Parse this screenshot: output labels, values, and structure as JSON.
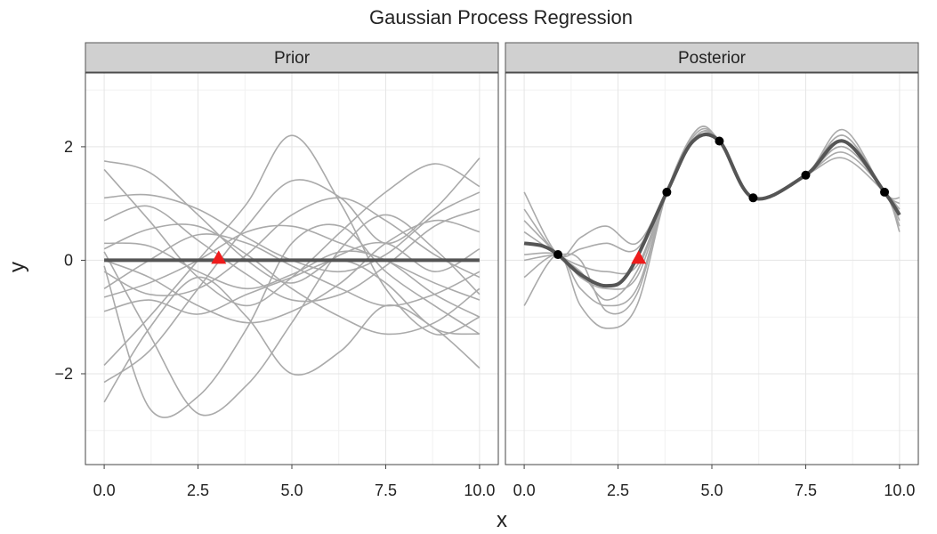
{
  "chart_data": {
    "type": "line",
    "title": "Gaussian Process Regression",
    "xlabel": "x",
    "ylabel": "y",
    "xlim": [
      -0.5,
      10.5
    ],
    "ylim": [
      -3.6,
      3.3
    ],
    "x_ticks": [
      0,
      2.5,
      5,
      7.5,
      10
    ],
    "x_tick_labels": [
      "0.0",
      "2.5",
      "5.0",
      "7.5",
      "10.0"
    ],
    "y_ticks": [
      -2,
      0,
      2
    ],
    "y_tick_labels": [
      "−2",
      "0",
      "2"
    ],
    "grid": true,
    "colors": {
      "sample": "#aaaaaa",
      "mean": "#555555",
      "observed": "#000000",
      "query": "#ee1c1c",
      "strip": "#d0d0d0",
      "grid": "#e5e5e5"
    },
    "panels": [
      {
        "label": "Prior",
        "samples": [
          [
            [
              0,
              1.75
            ],
            [
              1.2,
              1.55
            ],
            [
              2.5,
              0.8
            ],
            [
              3.8,
              0.0
            ],
            [
              5,
              -0.4
            ],
            [
              6.3,
              0.1
            ],
            [
              7.5,
              0.3
            ],
            [
              8.8,
              -0.2
            ],
            [
              10,
              0.2
            ]
          ],
          [
            [
              0,
              1.6
            ],
            [
              1.2,
              0.7
            ],
            [
              2.5,
              -0.3
            ],
            [
              3.8,
              -0.8
            ],
            [
              5,
              -0.3
            ],
            [
              6.3,
              0.5
            ],
            [
              7.5,
              1.2
            ],
            [
              8.8,
              1.7
            ],
            [
              10,
              1.3
            ]
          ],
          [
            [
              0,
              1.1
            ],
            [
              1.2,
              1.15
            ],
            [
              2.5,
              0.9
            ],
            [
              3.8,
              0.4
            ],
            [
              5,
              0.0
            ],
            [
              6.3,
              -0.2
            ],
            [
              7.5,
              0.1
            ],
            [
              8.8,
              0.8
            ],
            [
              10,
              1.2
            ]
          ],
          [
            [
              0,
              0.7
            ],
            [
              1.2,
              0.95
            ],
            [
              2.5,
              0.35
            ],
            [
              3.8,
              -0.25
            ],
            [
              5,
              -0.7
            ],
            [
              6.3,
              -0.6
            ],
            [
              7.5,
              -0.1
            ],
            [
              8.8,
              0.6
            ],
            [
              10,
              0.9
            ]
          ],
          [
            [
              0,
              0.3
            ],
            [
              1.2,
              0.25
            ],
            [
              2.5,
              -0.2
            ],
            [
              3.8,
              -0.5
            ],
            [
              5,
              -0.25
            ],
            [
              6.3,
              0.15
            ],
            [
              7.5,
              0.0
            ],
            [
              8.8,
              -0.6
            ],
            [
              10,
              -1.0
            ]
          ],
          [
            [
              0,
              0.2
            ],
            [
              1.2,
              0.55
            ],
            [
              2.5,
              0.6
            ],
            [
              3.8,
              0.1
            ],
            [
              5,
              -0.5
            ],
            [
              6.3,
              -1.0
            ],
            [
              7.5,
              -1.3
            ],
            [
              8.8,
              -1.1
            ],
            [
              10,
              -0.5
            ]
          ],
          [
            [
              0,
              0.0
            ],
            [
              1.2,
              -0.3
            ],
            [
              2.5,
              -0.8
            ],
            [
              3.8,
              -1.1
            ],
            [
              5,
              -0.9
            ],
            [
              6.3,
              -0.4
            ],
            [
              7.5,
              0.3
            ],
            [
              8.8,
              0.7
            ],
            [
              10,
              0.5
            ]
          ],
          [
            [
              0,
              -0.2
            ],
            [
              1.2,
              -0.6
            ],
            [
              2.5,
              -0.5
            ],
            [
              3.8,
              0.1
            ],
            [
              5,
              0.8
            ],
            [
              6.3,
              1.1
            ],
            [
              7.5,
              0.7
            ],
            [
              8.8,
              0.1
            ],
            [
              10,
              -0.3
            ]
          ],
          [
            [
              0,
              -0.5
            ],
            [
              1.2,
              0.0
            ],
            [
              2.5,
              0.45
            ],
            [
              3.8,
              0.3
            ],
            [
              5,
              -0.1
            ],
            [
              6.3,
              -0.5
            ],
            [
              7.5,
              -0.8
            ],
            [
              8.8,
              -0.6
            ],
            [
              10,
              -0.2
            ]
          ],
          [
            [
              0,
              -0.65
            ],
            [
              1.2,
              -0.4
            ],
            [
              2.5,
              0.0
            ],
            [
              3.8,
              0.5
            ],
            [
              5,
              0.6
            ],
            [
              6.3,
              0.3
            ],
            [
              7.5,
              0.0
            ],
            [
              8.8,
              -0.4
            ],
            [
              10,
              -0.7
            ]
          ],
          [
            [
              0,
              -0.9
            ],
            [
              1.2,
              -0.7
            ],
            [
              2.5,
              -0.95
            ],
            [
              3.8,
              -0.6
            ],
            [
              5,
              -0.3
            ],
            [
              6.3,
              0.0
            ],
            [
              7.5,
              -0.4
            ],
            [
              8.8,
              -1.2
            ],
            [
              10,
              -1.3
            ]
          ],
          [
            [
              0,
              -1.85
            ],
            [
              1.2,
              -1.0
            ],
            [
              2.5,
              0.0
            ],
            [
              3.8,
              1.0
            ],
            [
              5,
              2.2
            ],
            [
              6.3,
              1.0
            ],
            [
              7.5,
              -0.5
            ],
            [
              8.8,
              -1.3
            ],
            [
              10,
              -1.0
            ]
          ],
          [
            [
              0,
              -2.15
            ],
            [
              1.2,
              -1.6
            ],
            [
              2.5,
              -0.5
            ],
            [
              3.8,
              0.6
            ],
            [
              5,
              1.4
            ],
            [
              6.3,
              1.1
            ],
            [
              7.5,
              0.3
            ],
            [
              8.8,
              0.9
            ],
            [
              10,
              1.8
            ]
          ],
          [
            [
              0,
              -2.5
            ],
            [
              1.2,
              -1.2
            ],
            [
              2.5,
              -0.3
            ],
            [
              3.8,
              -1.0
            ],
            [
              5,
              -2.0
            ],
            [
              6.3,
              -1.6
            ],
            [
              7.5,
              -0.8
            ],
            [
              8.8,
              -1.2
            ],
            [
              10,
              -1.9
            ]
          ],
          [
            [
              0,
              0.15
            ],
            [
              1.2,
              -1.3
            ],
            [
              2.5,
              -2.7
            ],
            [
              3.8,
              -2.2
            ],
            [
              5,
              -1.1
            ],
            [
              6.3,
              0.2
            ],
            [
              7.5,
              0.8
            ],
            [
              8.8,
              0.2
            ],
            [
              10,
              -0.6
            ]
          ],
          [
            [
              0,
              -0.1
            ],
            [
              1.2,
              -2.6
            ],
            [
              2.5,
              -2.4
            ],
            [
              3.8,
              -1.2
            ],
            [
              5,
              0.3
            ],
            [
              6.3,
              0.6
            ],
            [
              7.5,
              -0.2
            ],
            [
              8.8,
              -0.8
            ],
            [
              10,
              -1.3
            ]
          ]
        ],
        "mean": [
          [
            0,
            0
          ],
          [
            10,
            0
          ]
        ],
        "query_point": [
          3.05,
          0.02
        ],
        "observed": []
      },
      {
        "label": "Posterior",
        "samples": [
          [
            [
              0,
              1.2
            ],
            [
              0.9,
              0.1
            ],
            [
              1.5,
              0.4
            ],
            [
              2.2,
              0.6
            ],
            [
              3.0,
              0.3
            ],
            [
              3.8,
              1.2
            ],
            [
              4.5,
              2.1
            ],
            [
              5.2,
              2.1
            ],
            [
              6.1,
              1.1
            ],
            [
              7.5,
              1.5
            ],
            [
              8.5,
              2.3
            ],
            [
              9.6,
              1.2
            ],
            [
              10,
              1.1
            ]
          ],
          [
            [
              0,
              0.9
            ],
            [
              0.9,
              0.1
            ],
            [
              1.5,
              0.2
            ],
            [
              2.2,
              0.3
            ],
            [
              3.0,
              0.2
            ],
            [
              3.8,
              1.2
            ],
            [
              4.6,
              2.2
            ],
            [
              5.2,
              2.1
            ],
            [
              6.1,
              1.1
            ],
            [
              7.5,
              1.5
            ],
            [
              8.5,
              2.2
            ],
            [
              9.6,
              1.2
            ],
            [
              10,
              0.9
            ]
          ],
          [
            [
              0,
              0.5
            ],
            [
              0.9,
              0.1
            ],
            [
              1.5,
              -0.1
            ],
            [
              2.2,
              -0.2
            ],
            [
              3.0,
              -0.1
            ],
            [
              3.8,
              1.2
            ],
            [
              4.6,
              2.2
            ],
            [
              5.2,
              2.1
            ],
            [
              6.1,
              1.1
            ],
            [
              7.5,
              1.5
            ],
            [
              8.5,
              2.1
            ],
            [
              9.6,
              1.2
            ],
            [
              10,
              0.8
            ]
          ],
          [
            [
              0,
              0.1
            ],
            [
              0.9,
              0.1
            ],
            [
              1.5,
              -0.3
            ],
            [
              2.2,
              -0.5
            ],
            [
              3.0,
              -0.3
            ],
            [
              3.8,
              1.2
            ],
            [
              4.6,
              2.25
            ],
            [
              5.2,
              2.1
            ],
            [
              6.1,
              1.1
            ],
            [
              7.5,
              1.5
            ],
            [
              8.5,
              2.0
            ],
            [
              9.6,
              1.2
            ],
            [
              10,
              0.6
            ]
          ],
          [
            [
              0,
              -0.3
            ],
            [
              0.9,
              0.1
            ],
            [
              1.5,
              -0.5
            ],
            [
              2.2,
              -0.8
            ],
            [
              3.0,
              -0.5
            ],
            [
              3.8,
              1.2
            ],
            [
              4.6,
              2.3
            ],
            [
              5.2,
              2.1
            ],
            [
              6.1,
              1.1
            ],
            [
              7.5,
              1.5
            ],
            [
              8.5,
              1.9
            ],
            [
              9.6,
              1.2
            ],
            [
              10,
              0.5
            ]
          ],
          [
            [
              0,
              -0.8
            ],
            [
              0.9,
              0.1
            ],
            [
              1.5,
              -0.8
            ],
            [
              2.2,
              -1.2
            ],
            [
              3.0,
              -0.8
            ],
            [
              3.8,
              1.2
            ],
            [
              4.6,
              2.3
            ],
            [
              5.2,
              2.1
            ],
            [
              6.1,
              1.1
            ],
            [
              7.5,
              1.5
            ],
            [
              8.5,
              1.8
            ],
            [
              9.6,
              1.2
            ],
            [
              10,
              0.9
            ]
          ],
          [
            [
              0,
              0.7
            ],
            [
              0.9,
              0.1
            ],
            [
              1.5,
              -0.2
            ],
            [
              2.2,
              -0.7
            ],
            [
              3.0,
              -0.2
            ],
            [
              3.8,
              1.2
            ],
            [
              4.6,
              2.2
            ],
            [
              5.2,
              2.1
            ],
            [
              6.1,
              1.1
            ],
            [
              7.5,
              1.5
            ],
            [
              8.5,
              2.2
            ],
            [
              9.6,
              1.2
            ],
            [
              10,
              1.0
            ]
          ],
          [
            [
              0,
              0.0
            ],
            [
              0.9,
              0.1
            ],
            [
              1.5,
              0.0
            ],
            [
              2.2,
              -0.9
            ],
            [
              3.0,
              -0.6
            ],
            [
              3.8,
              1.2
            ],
            [
              4.6,
              2.15
            ],
            [
              5.2,
              2.1
            ],
            [
              6.1,
              1.1
            ],
            [
              7.5,
              1.5
            ],
            [
              8.5,
              2.0
            ],
            [
              9.6,
              1.2
            ],
            [
              10,
              0.7
            ]
          ]
        ],
        "mean": [
          [
            0,
            0.3
          ],
          [
            0.5,
            0.25
          ],
          [
            0.9,
            0.1
          ],
          [
            1.5,
            -0.25
          ],
          [
            2.2,
            -0.45
          ],
          [
            2.8,
            -0.2
          ],
          [
            3.8,
            1.2
          ],
          [
            4.5,
            2.1
          ],
          [
            5.2,
            2.1
          ],
          [
            6.1,
            1.1
          ],
          [
            7.5,
            1.5
          ],
          [
            8.5,
            2.1
          ],
          [
            9.6,
            1.2
          ],
          [
            10,
            0.8
          ]
        ],
        "query_point": [
          3.05,
          0.02
        ],
        "observed": [
          [
            0.9,
            0.1
          ],
          [
            3.8,
            1.2
          ],
          [
            5.2,
            2.1
          ],
          [
            6.1,
            1.1
          ],
          [
            7.5,
            1.5
          ],
          [
            9.6,
            1.2
          ]
        ]
      }
    ]
  }
}
